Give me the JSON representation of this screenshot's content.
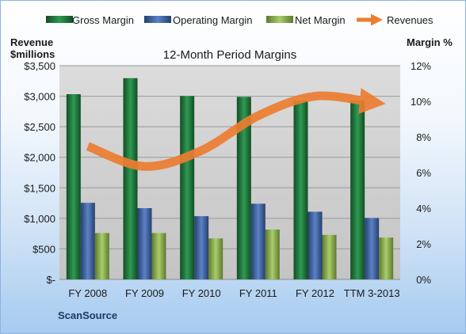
{
  "chart_data": {
    "type": "bar",
    "title": "12-Month Period Margins",
    "brand": "ScanSource",
    "left_axis_label": [
      "Revenue",
      "$millions"
    ],
    "right_axis_label": "Margin %",
    "categories": [
      "FY 2008",
      "FY 2009",
      "FY 2010",
      "FY 2011",
      "FY 2012",
      "TTM 3-2013"
    ],
    "left_ticks": [
      "$-",
      "$500",
      "$1,000",
      "$1,500",
      "$2,000",
      "$2,500",
      "$3,000",
      "$3,500"
    ],
    "right_ticks": [
      "0%",
      "2%",
      "4%",
      "6%",
      "8%",
      "10%",
      "12%"
    ],
    "ylim_left": [
      0,
      3500
    ],
    "ylim_right": [
      0,
      12
    ],
    "legend_position": "top",
    "grid": true,
    "series": [
      {
        "name": "Gross Margin",
        "type": "bar",
        "axis": "right",
        "color": "#1e7a3c",
        "values": [
          10.4,
          11.3,
          10.3,
          10.25,
          10.05,
          10.05
        ]
      },
      {
        "name": "Operating Margin",
        "type": "bar",
        "axis": "right",
        "color": "#3f64a8",
        "values": [
          4.3,
          4.0,
          3.55,
          4.25,
          3.8,
          3.45
        ]
      },
      {
        "name": "Net Margin",
        "type": "bar",
        "axis": "right",
        "color": "#8db350",
        "values": [
          2.6,
          2.6,
          2.3,
          2.8,
          2.5,
          2.35
        ]
      },
      {
        "name": "Revenues",
        "type": "line",
        "axis": "left",
        "color": "#ed7d31",
        "values": [
          2180,
          1850,
          2110,
          2680,
          3000,
          2900
        ]
      }
    ]
  }
}
